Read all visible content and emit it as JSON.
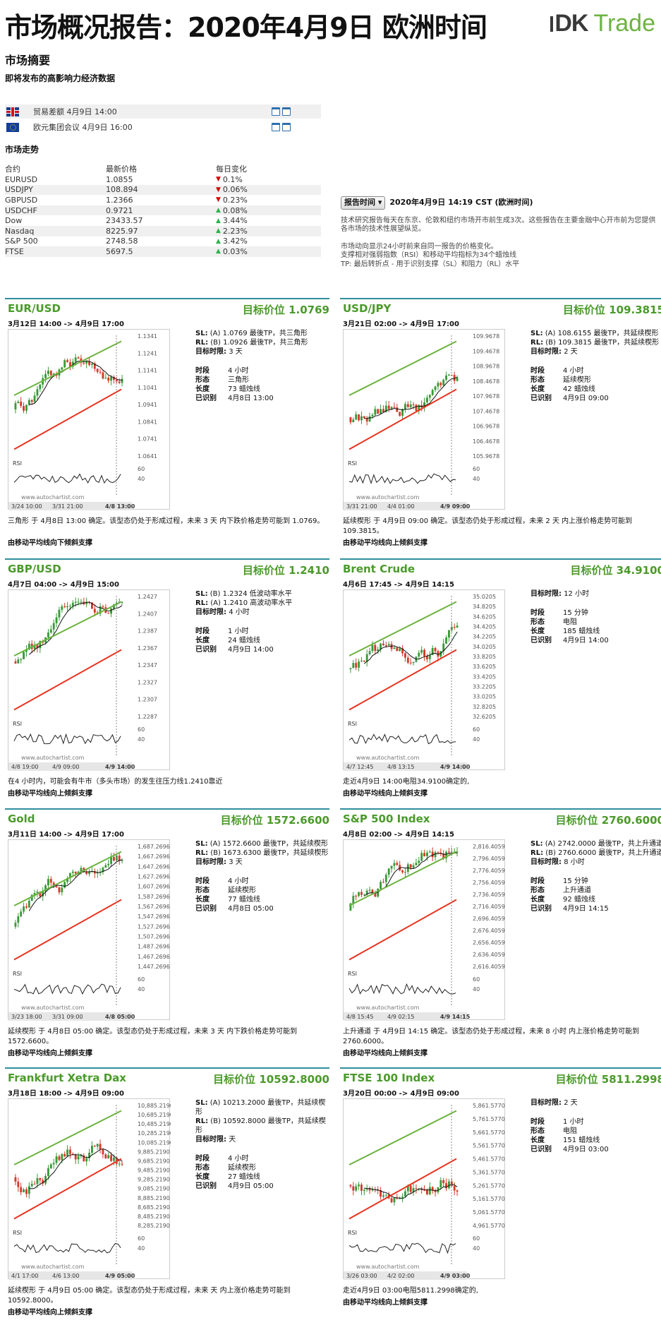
{
  "header": {
    "title": "市场概况报告：2020年4月9日 欧洲时间",
    "logo_dk": "DK",
    "logo_trade": "Trade"
  },
  "summary": {
    "title": "市场摘要",
    "events_title": "即将发布的高影响力经济数据",
    "trend_title": "市场走势"
  },
  "events": [
    {
      "flag": "uk",
      "name": "贸易差额 4月9日 14:00"
    },
    {
      "flag": "eu",
      "name": "欧元集团会议 4月9日 16:00"
    }
  ],
  "markets": {
    "headers": [
      "合约",
      "最新价格",
      "每日变化"
    ],
    "rows": [
      {
        "name": "EURUSD",
        "price": "1.0855",
        "dir": "down",
        "change": "0.1%"
      },
      {
        "name": "USDJPY",
        "price": "108.894",
        "dir": "down",
        "change": "0.06%"
      },
      {
        "name": "GBPUSD",
        "price": "1.2366",
        "dir": "down",
        "change": "0.23%"
      },
      {
        "name": "USDCHF",
        "price": "0.9721",
        "dir": "up",
        "change": "0.08%"
      },
      {
        "name": "Dow",
        "price": "23433.57",
        "dir": "up",
        "change": "3.44%"
      },
      {
        "name": "Nasdaq",
        "price": "8225.97",
        "dir": "up",
        "change": "2.23%"
      },
      {
        "name": "S&P 500",
        "price": "2748.58",
        "dir": "up",
        "change": "3.42%"
      },
      {
        "name": "FTSE",
        "price": "5697.5",
        "dir": "up",
        "change": "0.03%"
      }
    ]
  },
  "report": {
    "button": "报告时间",
    "date": "2020年4月9日 14:19 CST (欧洲时间)",
    "p1": "技术研究报告每天在东京、伦敦和纽约市场开市前生成3次。这些报告在主要金融中心开市前为您提供各市场的技术性展望纵览。",
    "p2a": "市场动向显示24小时前来自同一报告的价格变化。",
    "p2b": "支撑相对强弱指数（RSI）和移动平均指标为34个蜡烛线",
    "p2c": "TP: 最后转折点 - 用于识别支撑（SL）和阻力（RL）水平"
  },
  "panels": [
    {
      "name": "EUR/USD",
      "target": "目标价位 1.0769",
      "range": "3月12日 14:00 -> 4月9日 17:00",
      "lines": [
        {
          "k": "SL:",
          "v": "(A) 1.0769 最後TP，共三角形"
        },
        {
          "k": "RL:",
          "v": "(B) 1.0926 最後TP，共三角形"
        },
        {
          "k": "目标时限:",
          "v": "3 天"
        }
      ],
      "props": [
        {
          "k": "时段",
          "v": "4 小时"
        },
        {
          "k": "形态",
          "v": "三角形"
        },
        {
          "k": "长度",
          "v": "73 蜡烛线"
        },
        {
          "k": "已识别",
          "v": "4月8日 13:00"
        }
      ],
      "desc": "三角形 于 4月8日 13:00 确定。该型态仍处于形成过程，未来 3 天 内下跌价格走势可能到 1.0769。",
      "foot": "由移动平均线向下倾斜支撑",
      "y_ticks": [
        "1.1341",
        "1.1241",
        "1.1141",
        "1.1041",
        "1.0941",
        "1.0841",
        "1.0741",
        "1.0641"
      ],
      "x_ticks": [
        "3/24 10:00",
        "3/31 21:00",
        "4/8 13:00"
      ],
      "rsi_ticks": [
        "60",
        "40"
      ],
      "rsi_label": "RSI",
      "watermark": "www.autochartist.com"
    },
    {
      "name": "USD/JPY",
      "target": "目标价位 109.3815",
      "range": "3月21日 02:00 -> 4月9日 17:00",
      "lines": [
        {
          "k": "SL:",
          "v": "(A) 108.6155 最後TP，共延续楔形"
        },
        {
          "k": "RL:",
          "v": "(B) 109.3815 最後TP，共延续楔形"
        },
        {
          "k": "目标时限:",
          "v": "2 天"
        }
      ],
      "props": [
        {
          "k": "时段",
          "v": "4 小时"
        },
        {
          "k": "形态",
          "v": "延续楔形"
        },
        {
          "k": "长度",
          "v": "42 蜡烛线"
        },
        {
          "k": "已识别",
          "v": "4月9日 09:00"
        }
      ],
      "desc": "延续楔形 于 4月9日 09:00 确定。该型态仍处于形成过程，未来 2 天 内上涨价格走势可能到 109.3815。",
      "foot": "由移动平均线向上倾斜支撑",
      "y_ticks": [
        "109.9678",
        "109.4678",
        "108.9678",
        "108.4678",
        "107.9678",
        "107.4678",
        "106.9678",
        "106.4678",
        "105.9678"
      ],
      "x_ticks": [
        "3/31 21:00",
        "4/4 01:00",
        "4/9 09:00"
      ],
      "rsi_ticks": [
        "60",
        "40"
      ],
      "rsi_label": "RSI",
      "watermark": "www.autochartist.com"
    },
    {
      "name": "GBP/USD",
      "target": "目标价位 1.2410",
      "range": "4月7日 04:00 -> 4月9日 15:00",
      "lines": [
        {
          "k": "SL:",
          "v": "(B) 1.2324 低波动率水平"
        },
        {
          "k": "RL:",
          "v": "(A) 1.2410 高波动率水平"
        },
        {
          "k": "目标时限:",
          "v": "4 小时"
        }
      ],
      "props": [
        {
          "k": "时段",
          "v": "1 小时"
        },
        {
          "k": "长度",
          "v": "24 蜡烛线"
        },
        {
          "k": "已识别",
          "v": "4月9日 14:00"
        }
      ],
      "desc": "在4 小时内，可能会有牛市（多头市场）的发生往压力线1.2410靠近",
      "foot": "由移动平均线向上倾斜支撑",
      "y_ticks": [
        "1.2427",
        "1.2407",
        "1.2387",
        "1.2367",
        "1.2347",
        "1.2327",
        "1.2307",
        "1.2287"
      ],
      "x_ticks": [
        "4/8 19:00",
        "4/9 09:00",
        "4/9 14:00"
      ],
      "rsi_ticks": [
        "60",
        "40"
      ],
      "rsi_label": "RSI",
      "watermark": "www.autochartist.com"
    },
    {
      "name": "Brent Crude",
      "target": "目标价位 34.9100",
      "range": "4月6日 17:45 -> 4月9日 14:15",
      "lines": [
        {
          "k": "目标时限:",
          "v": "12 小时"
        }
      ],
      "props": [
        {
          "k": "时段",
          "v": "15 分钟"
        },
        {
          "k": "形态",
          "v": "电阻"
        },
        {
          "k": "长度",
          "v": "185 蜡烛线"
        },
        {
          "k": "已识别",
          "v": "4月9日 14:00"
        }
      ],
      "desc": "走近4月9日 14:00电阻34.9100确定的,",
      "foot": "由移动平均线向上倾斜支撑",
      "y_ticks": [
        "35.0205",
        "34.8205",
        "34.6205",
        "34.4205",
        "34.2205",
        "34.0205",
        "33.8205",
        "33.6205",
        "33.4205",
        "33.2205",
        "33.0205",
        "32.8205",
        "32.6205"
      ],
      "x_ticks": [
        "4/7 12:45",
        "4/8 13:15",
        "4/9 14:00"
      ],
      "rsi_ticks": [
        "60",
        "40"
      ],
      "rsi_label": "RSI",
      "watermark": "www.autochartist.com"
    },
    {
      "name": "Gold",
      "target": "目标价位 1572.6600",
      "range": "3月11日 14:00 -> 4月9日 17:00",
      "lines": [
        {
          "k": "SL:",
          "v": "(A) 1572.6600 最後TP，共延续楔形"
        },
        {
          "k": "RL:",
          "v": "(B) 1673.6300 最後TP，共延续楔形"
        },
        {
          "k": "目标时限:",
          "v": "3 天"
        }
      ],
      "props": [
        {
          "k": "时段",
          "v": "4 小时"
        },
        {
          "k": "形态",
          "v": "延续楔形"
        },
        {
          "k": "长度",
          "v": "77 蜡烛线"
        },
        {
          "k": "已识别",
          "v": "4月8日 05:00"
        }
      ],
      "desc": "延续楔形 于 4月8日 05:00 确定。该型态仍处于形成过程，未来 3 天 内下跌价格走势可能到 1572.6600。",
      "foot": "由移动平均线向上倾斜支撑",
      "y_ticks": [
        "1,687.2696",
        "1,667.2696",
        "1,647.2696",
        "1,627.2696",
        "1,607.2696",
        "1,587.2696",
        "1,567.2696",
        "1,547.2696",
        "1,527.2696",
        "1,507.2696",
        "1,487.2696",
        "1,467.2696",
        "1,447.2696"
      ],
      "x_ticks": [
        "3/23 18:00",
        "3/31 09:00",
        "4/8 05:00"
      ],
      "rsi_ticks": [
        "60",
        "40"
      ],
      "rsi_label": "RSI",
      "watermark": "www.autochartist.com"
    },
    {
      "name": "S&P 500 Index",
      "target": "目标价位 2760.6000",
      "range": "4月8日 02:00 -> 4月9日 14:15",
      "lines": [
        {
          "k": "SL:",
          "v": "(A) 2742.0000 最後TP，共上升通道"
        },
        {
          "k": "RL:",
          "v": "(B) 2760.6000 最後TP，共上升通道"
        },
        {
          "k": "目标时限:",
          "v": "8 小时"
        }
      ],
      "props": [
        {
          "k": "时段",
          "v": "15 分钟"
        },
        {
          "k": "形态",
          "v": "上升通道"
        },
        {
          "k": "长度",
          "v": "92 蜡烛线"
        },
        {
          "k": "已识别",
          "v": "4月9日 14:15"
        }
      ],
      "desc": "上升通道 于 4月9日 14:15 确定。该型态仍处于形成过程，未来 8 小时 内上涨价格走势可能到 2760.6000。",
      "foot": "由移动平均线向上倾斜支撑",
      "y_ticks": [
        "2,816.4059",
        "2,796.4059",
        "2,776.4059",
        "2,756.4059",
        "2,736.4059",
        "2,716.4059",
        "2,696.4059",
        "2,676.4059",
        "2,656.4059",
        "2,636.4059",
        "2,616.4059"
      ],
      "x_ticks": [
        "4/8 15:45",
        "4/9 02:15",
        "4/9 14:15"
      ],
      "rsi_ticks": [
        "60",
        "40"
      ],
      "rsi_label": "RSI",
      "watermark": "www.autochartist.com"
    },
    {
      "name": "Frankfurt Xetra Dax",
      "target": "目标价位 10592.8000",
      "range": "3月18日 18:00 -> 4月9日 09:00",
      "lines": [
        {
          "k": "SL:",
          "v": "(A) 10213.2000 最後TP，共延续楔形"
        },
        {
          "k": "RL:",
          "v": "(B) 10592.8000 最後TP，共延续楔形"
        },
        {
          "k": "目标时限:",
          "v": "天"
        }
      ],
      "props": [
        {
          "k": "时段",
          "v": "4 小时"
        },
        {
          "k": "形态",
          "v": "延续楔形"
        },
        {
          "k": "长度",
          "v": "27 蜡烛线"
        },
        {
          "k": "已识别",
          "v": "4月9日 05:00"
        }
      ],
      "desc": "延续楔形 于 4月9日 05:00 确定。该型态仍处于形成过程，未来 天 内上涨价格走势可能到 10592.8000。",
      "foot": "由移动平均线向上倾斜支撑",
      "y_ticks": [
        "10,885.2190",
        "10,685.2190",
        "10,485.2190",
        "10,285.2190",
        "10,085.2190",
        "9,885.2190",
        "9,685.2190",
        "9,485.2190",
        "9,285.2190",
        "9,085.2190",
        "8,885.2190",
        "8,685.2190",
        "8,485.2190",
        "8,285.2190"
      ],
      "x_ticks": [
        "4/1 17:00",
        "4/6 13:00",
        "4/9 05:00"
      ],
      "rsi_ticks": [
        "60",
        "40"
      ],
      "rsi_label": "RSI",
      "watermark": "www.autochartist.com"
    },
    {
      "name": "FTSE 100 Index",
      "target": "目标价位 5811.2998",
      "range": "3月20日 00:00 -> 4月9日 09:00",
      "lines": [
        {
          "k": "目标时限:",
          "v": "2 天"
        }
      ],
      "props": [
        {
          "k": "时段",
          "v": "1 小时"
        },
        {
          "k": "形态",
          "v": "电阻"
        },
        {
          "k": "长度",
          "v": "151 蜡烛线"
        },
        {
          "k": "已识别",
          "v": "4月9日 03:00"
        }
      ],
      "desc": "走近4月9日 03:00电阻5811.2998确定的,",
      "foot": "由移动平均线向上倾斜支撑",
      "y_ticks": [
        "5,861.5770",
        "5,761.5770",
        "5,661.5770",
        "5,561.5770",
        "5,461.5770",
        "5,361.5770",
        "5,261.5770",
        "5,161.5770",
        "5,061.5770",
        "4,961.5770"
      ],
      "x_ticks": [
        "3/26 03:00",
        "4/2 02:00",
        "4/9 03:00"
      ],
      "rsi_ticks": [
        "60",
        "40"
      ],
      "rsi_label": "RSI",
      "watermark": "www.autochartist.com"
    }
  ],
  "colors": {
    "accent_green": "#4a9a2a",
    "rule_teal": "#2f8e9d",
    "down_red": "#d40000",
    "up_green": "#2cb14a"
  }
}
